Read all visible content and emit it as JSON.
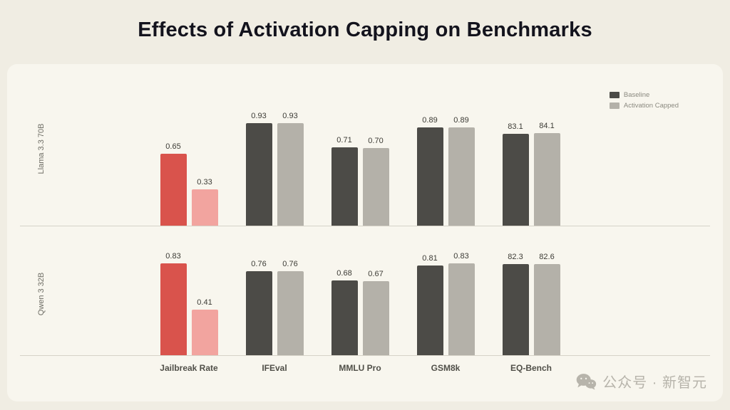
{
  "title": "Effects of Activation Capping on Benchmarks",
  "legend": {
    "baseline_label": "Baseline",
    "capped_label": "Activation Capped"
  },
  "watermark": {
    "text": "公众号 · 新智元"
  },
  "colors": {
    "page_bg": "#f0ede3",
    "panel_bg": "#f8f6ee",
    "title_text": "#13131d",
    "axis_line": "#d6d3c8",
    "bar_default": [
      "#4c4b47",
      "#b4b1a9"
    ],
    "bar_jailbreak": [
      "#d9534c",
      "#f2a49f"
    ]
  },
  "chart_data": {
    "type": "bar",
    "title": "Effects of Activation Capping on Benchmarks",
    "categories": [
      "Jailbreak Rate",
      "IFEval",
      "MMLU Pro",
      "GSM8k",
      "EQ-Bench"
    ],
    "legend_position": "top-right",
    "grid": false,
    "value_scale_note": "Values <= 1 on 0-1 scale; EQ-Bench values on 0-100 scale",
    "rows": [
      {
        "label": "Llama 3.3 70B",
        "series": [
          {
            "name": "Baseline",
            "values": [
              0.65,
              0.93,
              0.71,
              0.89,
              83.1
            ]
          },
          {
            "name": "Activation Capped",
            "values": [
              0.33,
              0.93,
              0.7,
              0.89,
              84.1
            ]
          }
        ]
      },
      {
        "label": "Qwen 3 32B",
        "series": [
          {
            "name": "Baseline",
            "values": [
              0.83,
              0.76,
              0.68,
              0.81,
              82.3
            ]
          },
          {
            "name": "Activation Capped",
            "values": [
              0.41,
              0.76,
              0.67,
              0.83,
              82.6
            ]
          }
        ]
      }
    ]
  }
}
